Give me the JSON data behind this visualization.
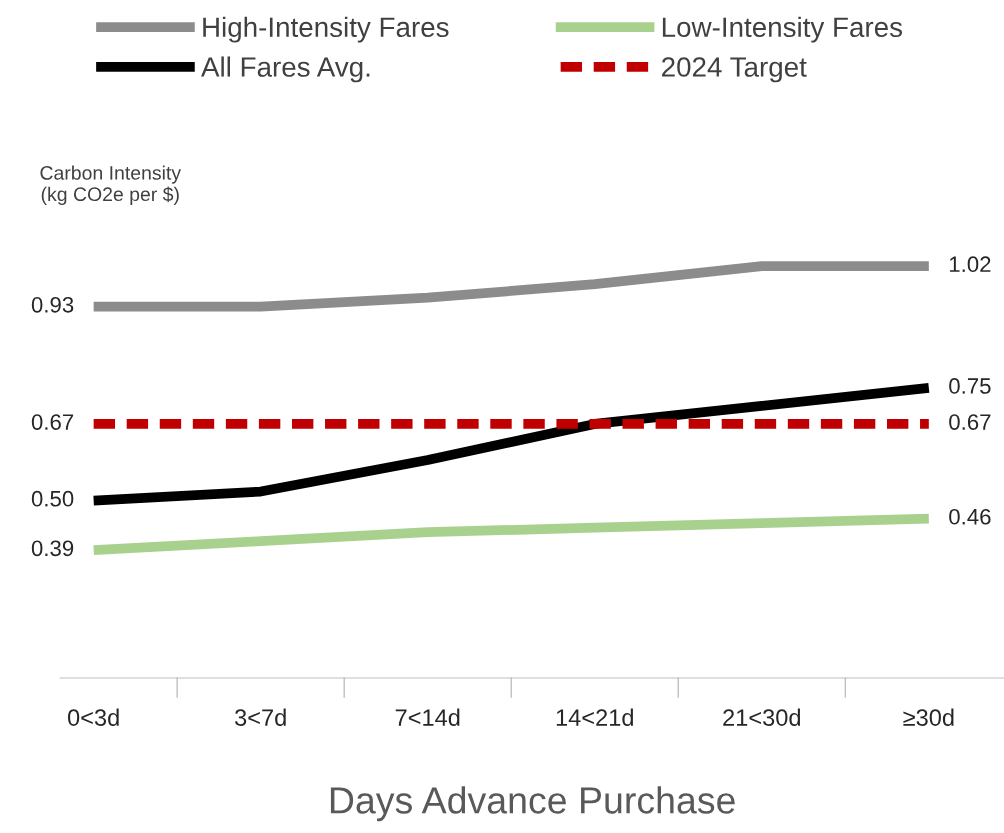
{
  "chart_data": {
    "type": "line",
    "ylabel": "Carbon Intensity\n(kg CO2e per $)",
    "xlabel": "Days Advance Purchase",
    "categories": [
      "0<3d",
      "3<7d",
      "7<14d",
      "14<21d",
      "21<30d",
      "≥30d"
    ],
    "grid": false,
    "legend": "top",
    "line_style": "solid",
    "marker": "none",
    "series": [
      {
        "name": "High-Intensity Fares",
        "color": "#8c8c8c",
        "values": [
          0.93,
          0.93,
          0.95,
          0.98,
          1.02,
          1.02
        ],
        "value_labels": [
          "0.93",
          null,
          null,
          null,
          null,
          "1.02"
        ]
      },
      {
        "name": "Low-Intensity Fares",
        "color": "#a9d18e",
        "values": [
          0.39,
          0.41,
          0.43,
          0.44,
          0.45,
          0.46
        ],
        "value_labels": [
          "0.39",
          null,
          null,
          null,
          null,
          "0.46"
        ]
      },
      {
        "name": "All Fares Avg.",
        "color": "#000000",
        "values": [
          0.5,
          0.52,
          0.59,
          0.67,
          0.71,
          0.75
        ],
        "value_labels": [
          "0.50",
          null,
          null,
          null,
          null,
          "0.75"
        ]
      },
      {
        "name": "2024 Target",
        "color": "#c00000",
        "line_style": "dashed",
        "values": [
          0.67,
          0.67,
          0.67,
          0.67,
          0.67,
          0.67
        ],
        "value_labels": [
          "0.67",
          null,
          null,
          null,
          null,
          "0.67"
        ]
      }
    ]
  }
}
